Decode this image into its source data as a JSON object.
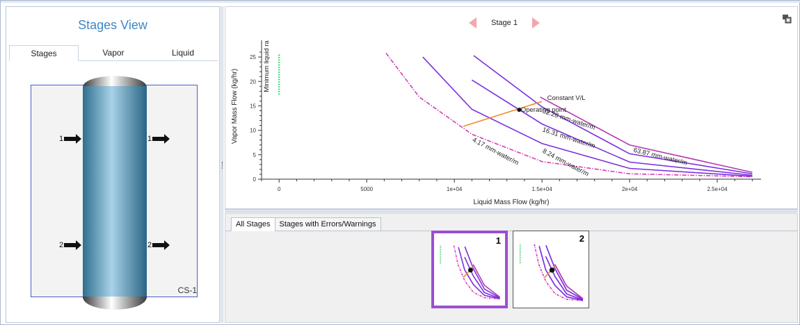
{
  "left_panel": {
    "title": "Stages View",
    "tabs": [
      {
        "label": "Stages",
        "active": true
      },
      {
        "label": "Vapor",
        "active": false
      },
      {
        "label": "Liquid",
        "active": false
      }
    ],
    "column_label": "CS-1",
    "streams": {
      "left_1": "1",
      "right_1": "1",
      "left_2": "2",
      "right_2": "2"
    }
  },
  "chart_nav": {
    "stage_label": "Stage 1",
    "prev_icon": "triangle-left-icon",
    "next_icon": "triangle-right-icon",
    "corner_icon": "view-options-icon"
  },
  "chart_data": {
    "type": "line",
    "xlabel": "Liquid Mass Flow (kg/hr)",
    "ylabel": "Vapor Mass Flow (kg/hr)",
    "xlim": [
      -1000,
      27500
    ],
    "ylim": [
      0,
      27
    ],
    "xticks": [
      {
        "v": 0,
        "label": "0"
      },
      {
        "v": 5000,
        "label": "5000"
      },
      {
        "v": 10000,
        "label": "1e+04"
      },
      {
        "v": 15000,
        "label": "1.5e+04"
      },
      {
        "v": 20000,
        "label": "2e+04"
      },
      {
        "v": 25000,
        "label": "2.5e+04"
      }
    ],
    "yticks": [
      0,
      5,
      10,
      15,
      20,
      25
    ],
    "series": [
      {
        "name": "4.17 mm-water/m",
        "color": "#d63bb2",
        "style": "dashdot",
        "points": [
          [
            6100,
            25.8
          ],
          [
            8000,
            16.8
          ],
          [
            11000,
            9.2
          ],
          [
            15000,
            3.6
          ],
          [
            20000,
            1.1
          ],
          [
            27000,
            0.5
          ]
        ]
      },
      {
        "name": "8.24 mm-water/m",
        "color": "#7b2fe0",
        "style": "solid",
        "points": [
          [
            8200,
            25.0
          ],
          [
            11000,
            14.3
          ],
          [
            15000,
            7.3
          ],
          [
            20000,
            2.2
          ],
          [
            27000,
            0.6
          ]
        ]
      },
      {
        "name": "16.31 mm-water/m",
        "color": "#7b2fe0",
        "style": "solid",
        "points": [
          [
            11000,
            20.3
          ],
          [
            15000,
            11.3
          ],
          [
            20000,
            3.5
          ],
          [
            27000,
            0.8
          ]
        ]
      },
      {
        "name": "32.28 mm-water/m",
        "color": "#7b2fe0",
        "style": "solid",
        "points": [
          [
            11100,
            25.3
          ],
          [
            15000,
            14.8
          ],
          [
            20000,
            5.2
          ],
          [
            27000,
            1.1
          ]
        ]
      },
      {
        "name": "63.87 mm-water/m",
        "color": "#b33ab0",
        "style": "solid",
        "points": [
          [
            14900,
            16.8
          ],
          [
            20000,
            7.0
          ],
          [
            27000,
            1.4
          ]
        ]
      },
      {
        "name": "Constant V/L",
        "color": "#f08a24",
        "style": "solid",
        "points": [
          [
            10500,
            10.8
          ],
          [
            15000,
            15.9
          ]
        ]
      },
      {
        "name": "Minimum liquid rate",
        "color": "#25d05a",
        "style": "dotted",
        "points": [
          [
            0,
            17.3
          ],
          [
            0,
            25.8
          ]
        ]
      }
    ],
    "operating_point": {
      "x": 13700,
      "y": 14.2,
      "label": "Operating point"
    },
    "annotations": [
      "Constant V/L",
      "Operating point",
      "4.17 mm-water/m",
      "8.24 mm-water/m",
      "16.31 mm-water/m",
      "32.28 mm-water/m",
      "63.87 mm-water/m",
      "Minimum liquid ra"
    ]
  },
  "bottom_panel": {
    "tabs": [
      {
        "label": "All Stages",
        "active": true
      },
      {
        "label": "Stages with Errors/Warnings",
        "active": false
      }
    ],
    "thumbnails": [
      {
        "number": "1",
        "selected": true
      },
      {
        "number": "2",
        "selected": false
      }
    ]
  }
}
